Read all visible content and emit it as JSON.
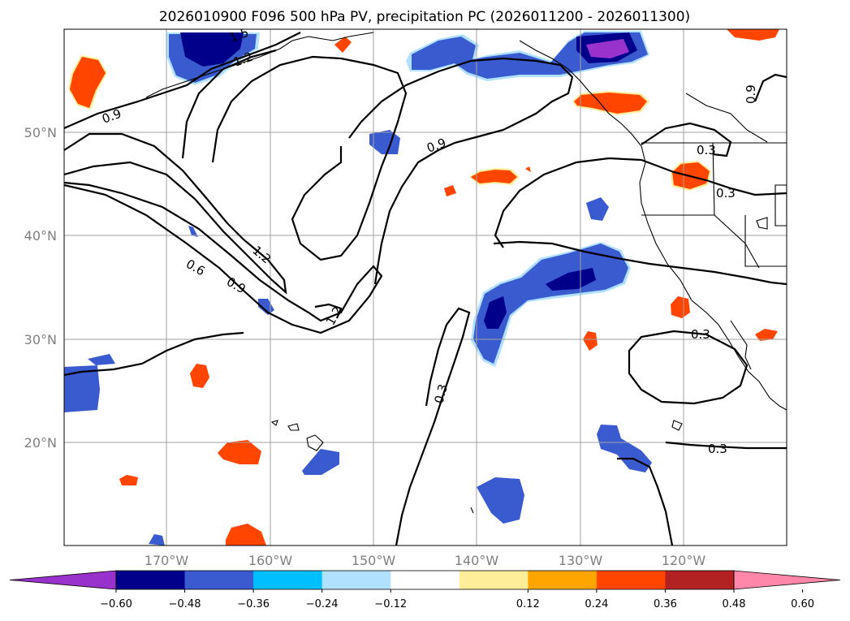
{
  "title": "2026010900 F096 500 hPa PV, precipitation PC (2026011200 - 2026011300)",
  "lat_labels": [
    "50°N",
    "40°N",
    "30°N",
    "20°N"
  ],
  "lon_labels": [
    "170°W",
    "160°W",
    "150°W",
    "140°W",
    "130°W",
    "120°W"
  ],
  "contour_labels": [
    "1.5",
    "1.2",
    "0.9",
    "0.9",
    "0.3",
    "0.3",
    "1.2",
    "0.6",
    "0.9",
    "1.2",
    "0.3",
    "0.3",
    "0.3",
    "0.9"
  ],
  "colorbar": {
    "ticks": [
      "−0.60",
      "−0.48",
      "−0.36",
      "−0.24",
      "−0.12",
      "0.12",
      "0.24",
      "0.36",
      "0.48",
      "0.60"
    ],
    "colors": [
      "#9932cc",
      "#00008b",
      "#3a5bcf",
      "#00bfff",
      "#b0e2ff",
      "#ffffff",
      "#ffee99",
      "#ffa500",
      "#ff4500",
      "#b22222",
      "#ff88aa"
    ]
  },
  "map": {
    "lon_range": [
      -180,
      -110
    ],
    "lat_range": [
      10,
      60
    ],
    "grid_lons": [
      -170,
      -160,
      -150,
      -140,
      -130,
      -120
    ],
    "grid_lats": [
      50,
      40,
      30,
      20
    ]
  }
}
